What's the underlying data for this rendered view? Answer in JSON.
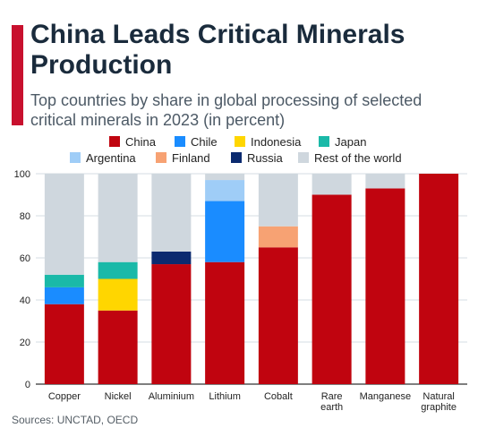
{
  "title": "China Leads Critical Minerals Production",
  "subtitle": "Top countries by share in global processing of selected critical minerals in 2023 (in percent)",
  "source": "Sources: UNCTAD, OECD",
  "chart_data": {
    "type": "bar",
    "stacked": true,
    "categories": [
      "Copper",
      "Nickel",
      "Aluminium",
      "Lithium",
      "Cobalt",
      "Rare earth",
      "Manganese",
      "Natural graphite"
    ],
    "ylim": [
      0,
      100
    ],
    "yticks": [
      0,
      20,
      40,
      60,
      80,
      100
    ],
    "grid": true,
    "legend_position": "top",
    "series": [
      {
        "name": "China",
        "color": "#c0040f",
        "values": [
          38,
          35,
          57,
          58,
          65,
          90,
          93,
          100
        ]
      },
      {
        "name": "Chile",
        "color": "#1a8cff",
        "values": [
          8,
          0,
          0,
          29,
          0,
          0,
          0,
          0
        ]
      },
      {
        "name": "Indonesia",
        "color": "#ffd600",
        "values": [
          0,
          15,
          0,
          0,
          0,
          0,
          0,
          0
        ]
      },
      {
        "name": "Japan",
        "color": "#1ab9a8",
        "values": [
          6,
          8,
          0,
          0,
          0,
          0,
          0,
          0
        ]
      },
      {
        "name": "Argentina",
        "color": "#9fcdf7",
        "values": [
          0,
          0,
          0,
          10,
          0,
          0,
          0,
          0
        ]
      },
      {
        "name": "Finland",
        "color": "#f7a273",
        "values": [
          0,
          0,
          0,
          0,
          10,
          0,
          0,
          0
        ]
      },
      {
        "name": "Russia",
        "color": "#0b2a6f",
        "values": [
          0,
          0,
          6,
          0,
          0,
          0,
          0,
          0
        ]
      },
      {
        "name": "Rest of the world",
        "color": "#cfd7de",
        "values": [
          48,
          42,
          37,
          3,
          25,
          10,
          7,
          0
        ]
      }
    ]
  }
}
